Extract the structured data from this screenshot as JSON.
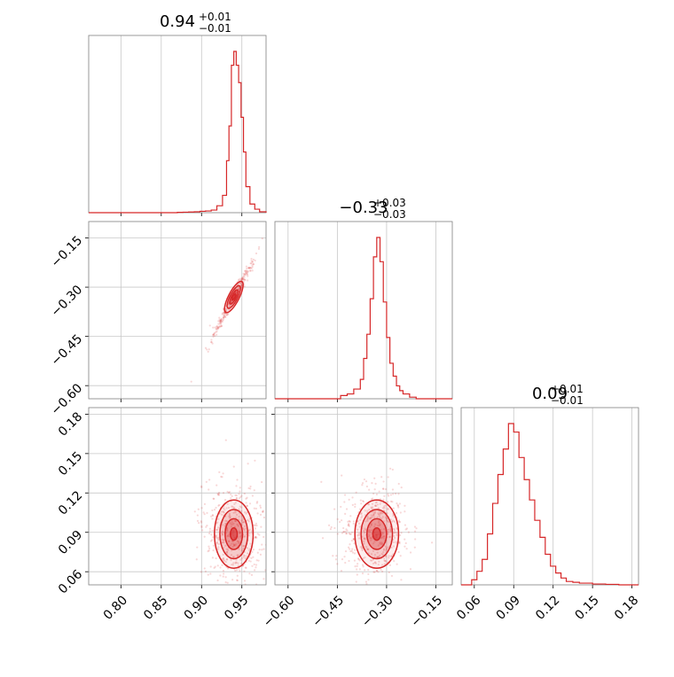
{
  "figure": {
    "type": "corner-plot"
  },
  "colors": {
    "series": "#d62728",
    "frame": "#808080",
    "grid": "#c8c8c8",
    "background": "#ffffff"
  },
  "titles": {
    "p0": {
      "value": "0.94",
      "plus": "+0.01",
      "minus": "−0.01"
    },
    "p1": {
      "value": "−0.33",
      "plus": "+0.03",
      "minus": "−0.03"
    },
    "p2": {
      "value": "0.09",
      "plus": "+0.01",
      "minus": "−0.01"
    }
  },
  "chart_data": [
    {
      "type": "histogram",
      "panel": "diag-0",
      "param_index": 0,
      "xlim": [
        0.76,
        0.98
      ],
      "ticks": [
        0.8,
        0.85,
        0.9,
        0.95
      ],
      "tick_labels": [
        "0.80",
        "0.85",
        "0.90",
        "0.95"
      ],
      "edges": [
        0.87,
        0.877,
        0.884,
        0.891,
        0.898,
        0.905,
        0.912,
        0.919,
        0.926,
        0.931,
        0.934,
        0.937,
        0.94,
        0.943,
        0.946,
        0.949,
        0.952,
        0.955,
        0.96,
        0.966,
        0.972,
        0.98
      ],
      "counts": [
        0.002,
        0.003,
        0.004,
        0.005,
        0.008,
        0.01,
        0.015,
        0.04,
        0.1,
        0.3,
        0.5,
        0.85,
        0.93,
        0.85,
        0.75,
        0.55,
        0.35,
        0.15,
        0.05,
        0.02,
        0.005
      ],
      "median": 0.94,
      "err_plus": 0.01,
      "err_minus": 0.01
    },
    {
      "type": "histogram",
      "panel": "diag-1",
      "param_index": 1,
      "xlim": [
        -0.64,
        -0.1
      ],
      "ticks": [
        -0.6,
        -0.45,
        -0.3,
        -0.15
      ],
      "tick_labels": [
        "−0.60",
        "−0.45",
        "−0.30",
        "−0.15"
      ],
      "edges": [
        -0.44,
        -0.42,
        -0.4,
        -0.38,
        -0.37,
        -0.36,
        -0.35,
        -0.34,
        -0.33,
        -0.32,
        -0.31,
        -0.3,
        -0.29,
        -0.28,
        -0.27,
        -0.26,
        -0.25,
        -0.23,
        -0.21
      ],
      "counts": [
        0.02,
        0.03,
        0.06,
        0.12,
        0.25,
        0.4,
        0.62,
        0.88,
        1.0,
        0.85,
        0.6,
        0.38,
        0.22,
        0.14,
        0.08,
        0.05,
        0.03,
        0.01
      ],
      "median": -0.33,
      "err_plus": 0.03,
      "err_minus": 0.03
    },
    {
      "type": "histogram",
      "panel": "diag-2",
      "param_index": 2,
      "xlim": [
        0.05,
        0.185
      ],
      "ticks": [
        0.06,
        0.09,
        0.12,
        0.15,
        0.18
      ],
      "tick_labels": [
        "0.06",
        "0.09",
        "0.12",
        "0.15",
        "0.18"
      ],
      "edges": [
        0.058,
        0.062,
        0.066,
        0.07,
        0.074,
        0.078,
        0.082,
        0.086,
        0.09,
        0.094,
        0.098,
        0.102,
        0.106,
        0.11,
        0.114,
        0.118,
        0.122,
        0.126,
        0.13,
        0.135,
        0.14,
        0.15,
        0.16,
        0.17
      ],
      "counts": [
        0.03,
        0.08,
        0.15,
        0.3,
        0.48,
        0.65,
        0.8,
        0.95,
        0.9,
        0.75,
        0.62,
        0.5,
        0.38,
        0.28,
        0.18,
        0.11,
        0.07,
        0.04,
        0.02,
        0.015,
        0.01,
        0.005,
        0.003
      ],
      "median": 0.09,
      "err_plus": 0.01,
      "err_minus": 0.01
    },
    {
      "type": "scatter-contour",
      "panel": "off-1-0",
      "x_param": 0,
      "y_param": 1,
      "xlim": [
        0.76,
        0.98
      ],
      "ylim": [
        -0.64,
        -0.1
      ],
      "xticks": [
        0.8,
        0.85,
        0.9,
        0.95
      ],
      "yticks": [
        -0.6,
        -0.45,
        -0.3,
        -0.15
      ],
      "ytick_labels": [
        "−0.60",
        "−0.45",
        "−0.30",
        "−0.15"
      ],
      "center": [
        0.94,
        -0.33
      ],
      "rho": 0.98,
      "axis_major": [
        0.962,
        -0.225
      ],
      "axis_minor": [
        0.948,
        -0.345
      ],
      "sample_count": 300
    },
    {
      "type": "scatter-contour",
      "panel": "off-2-0",
      "x_param": 0,
      "y_param": 2,
      "xlim": [
        0.76,
        0.98
      ],
      "ylim": [
        0.05,
        0.185
      ],
      "xticks": [
        0.8,
        0.85,
        0.9,
        0.95
      ],
      "xtick_labels": [
        "0.80",
        "0.85",
        "0.90",
        "0.95"
      ],
      "yticks": [
        0.06,
        0.09,
        0.12,
        0.15,
        0.18
      ],
      "ytick_labels": [
        "0.06",
        "0.09",
        "0.12",
        "0.15",
        "0.18"
      ],
      "center": [
        0.94,
        0.09
      ],
      "sigma": [
        0.012,
        0.013
      ],
      "rho": 0.0,
      "sample_count": 500
    },
    {
      "type": "scatter-contour",
      "panel": "off-2-1",
      "x_param": 1,
      "y_param": 2,
      "xlim": [
        -0.64,
        -0.1
      ],
      "ylim": [
        0.05,
        0.185
      ],
      "xticks": [
        -0.6,
        -0.45,
        -0.3,
        -0.15
      ],
      "xtick_labels": [
        "−0.60",
        "−0.45",
        "−0.30",
        "−0.15"
      ],
      "yticks": [
        0.06,
        0.09,
        0.12,
        0.15,
        0.18
      ],
      "center": [
        -0.33,
        0.09
      ],
      "sigma": [
        0.035,
        0.013
      ],
      "rho": 0.0,
      "sample_count": 500
    }
  ]
}
